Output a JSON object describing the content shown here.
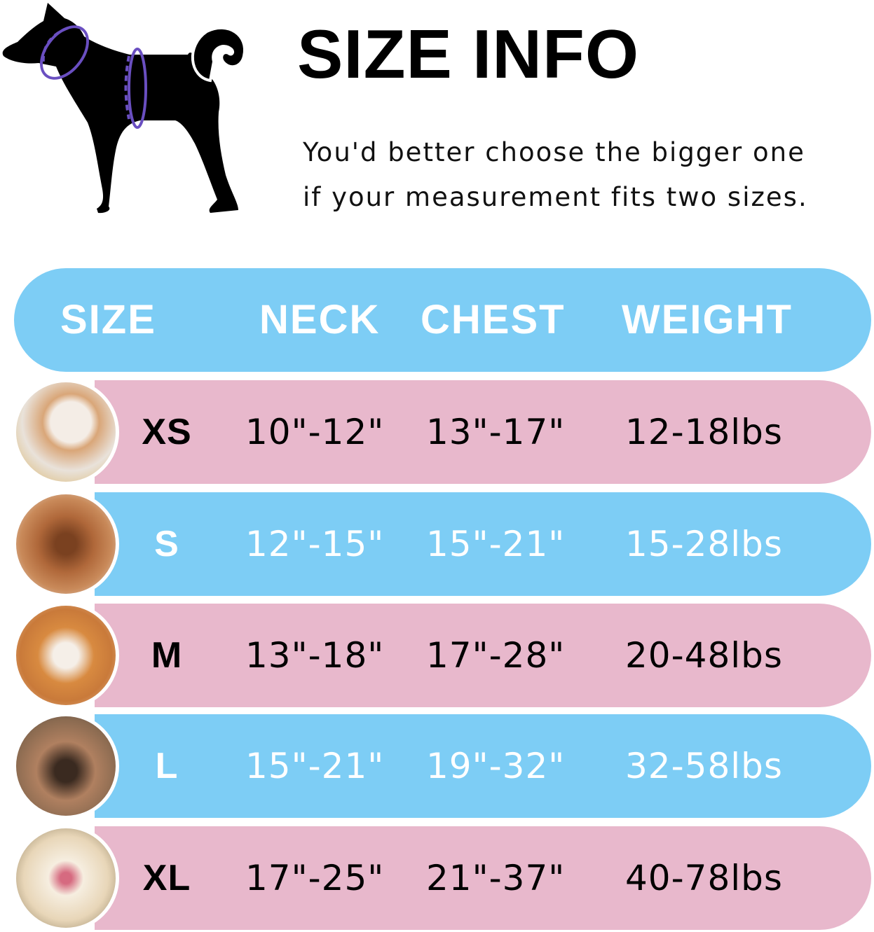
{
  "title": "SIZE INFO",
  "subtitle_line1": "You'd better choose the bigger one",
  "subtitle_line2": "if your measurement fits two sizes.",
  "colors": {
    "blue": "#7dcdf5",
    "pink": "#e8b8cc",
    "ring": "#6a4fc1"
  },
  "table": {
    "headers": [
      "SIZE",
      "NECK",
      "CHEST",
      "WEIGHT"
    ],
    "rows": [
      {
        "size": "XS",
        "neck": "10\"-12\"",
        "chest": "13\"-17\"",
        "weight": "12-18lbs",
        "color": "pink",
        "photo": "pomeranian-photo"
      },
      {
        "size": "S",
        "neck": "12\"-15\"",
        "chest": "15\"-21\"",
        "weight": "15-28lbs",
        "color": "blue",
        "photo": "poodle-photo"
      },
      {
        "size": "M",
        "neck": "13\"-18\"",
        "chest": "17\"-28\"",
        "weight": "20-48lbs",
        "color": "pink",
        "photo": "shiba-inu-photo"
      },
      {
        "size": "L",
        "neck": "15\"-21\"",
        "chest": "19\"-32\"",
        "weight": "32-58lbs",
        "color": "blue",
        "photo": "french-bulldog-photo"
      },
      {
        "size": "XL",
        "neck": "17\"-25\"",
        "chest": "21\"-37\"",
        "weight": "40-78lbs",
        "color": "pink",
        "photo": "labrador-photo"
      }
    ]
  }
}
